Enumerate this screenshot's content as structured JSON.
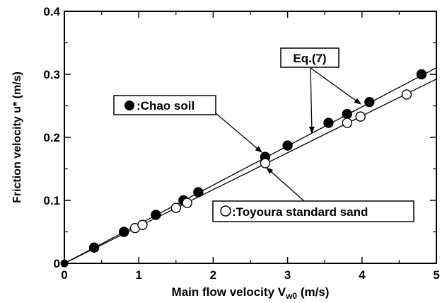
{
  "chart_data": {
    "type": "scatter",
    "xlabel": "Main flow velocity V",
    "xlabel_sub": "w0",
    "xlabel_unit": " (m/s)",
    "ylabel": "Friction velocity u* (m/s)",
    "xlim": [
      0,
      5
    ],
    "ylim": [
      0,
      0.4
    ],
    "x_ticks": [
      0,
      1,
      2,
      3,
      4,
      5
    ],
    "x_tick_labels": [
      "0",
      "1",
      "2",
      "3",
      "4",
      "5"
    ],
    "y_ticks": [
      0,
      0.1,
      0.2,
      0.3,
      0.4
    ],
    "y_tick_labels": [
      "0",
      "0.1",
      "0.2",
      "0.3",
      "0.4"
    ],
    "grid": false,
    "series": [
      {
        "name": ":Chao soil",
        "marker": "filled-circle",
        "x": [
          0.4,
          0.8,
          1.23,
          1.6,
          1.8,
          2.7,
          3.0,
          3.55,
          3.8,
          4.1,
          4.8
        ],
        "y": [
          0.025,
          0.05,
          0.077,
          0.1,
          0.113,
          0.169,
          0.187,
          0.223,
          0.237,
          0.256,
          0.3
        ]
      },
      {
        "name": ":Toyoura standard sand",
        "marker": "open-circle",
        "x": [
          0.95,
          1.05,
          1.5,
          1.65,
          2.7,
          3.8,
          3.98,
          4.6
        ],
        "y": [
          0.056,
          0.061,
          0.088,
          0.096,
          0.159,
          0.223,
          0.233,
          0.268
        ]
      }
    ],
    "fit_lines": [
      {
        "slope": 0.0621,
        "x_range": [
          0,
          5
        ]
      },
      {
        "slope": 0.0585,
        "x_range": [
          0,
          5
        ]
      }
    ],
    "annotations": {
      "eq_label": "Eq.(7)",
      "chao_label": ":Chao soil",
      "toyoura_label": ":Toyoura standard sand"
    },
    "colors": {
      "ink": "#000000",
      "background": "#ffffff"
    }
  }
}
